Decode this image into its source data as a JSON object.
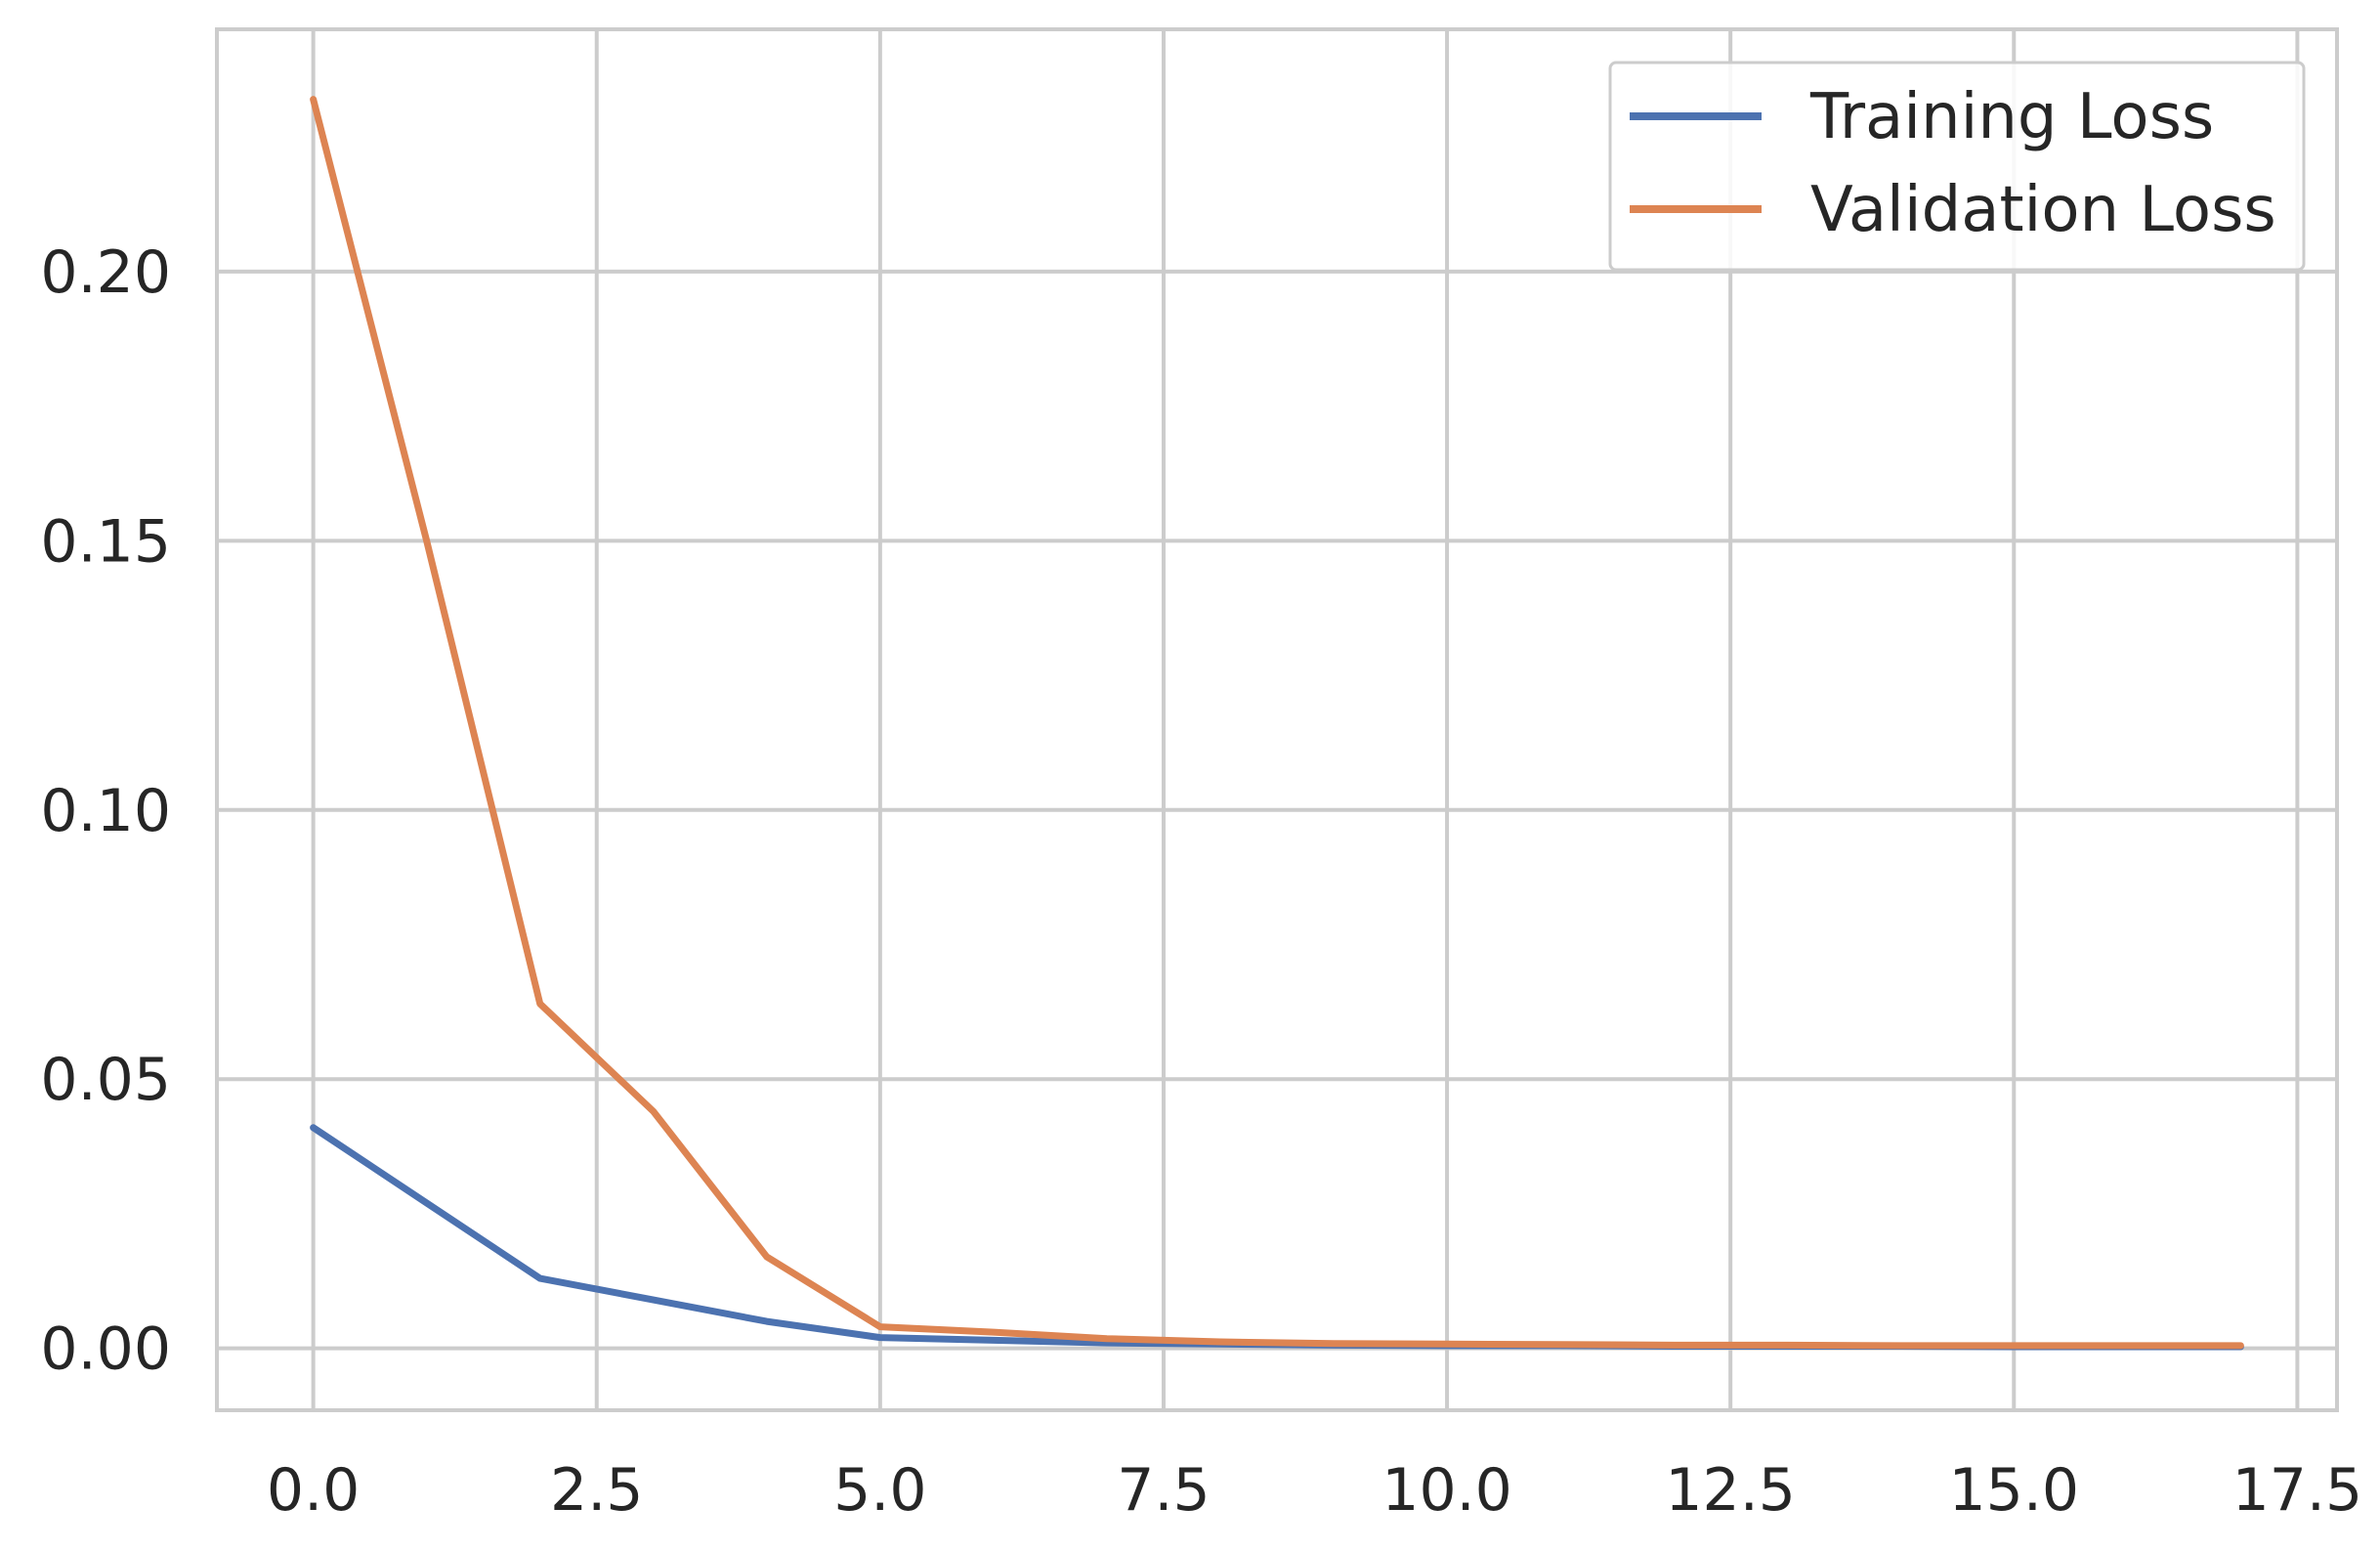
{
  "chart_data": {
    "type": "line",
    "title": "",
    "xlabel": "",
    "ylabel": "",
    "xlim": [
      -0.85,
      17.85
    ],
    "ylim": [
      -0.0115,
      0.245
    ],
    "xticks": [
      0.0,
      2.5,
      5.0,
      7.5,
      10.0,
      12.5,
      15.0,
      17.5
    ],
    "xtick_labels": [
      "0.0",
      "2.5",
      "5.0",
      "7.5",
      "10.0",
      "12.5",
      "15.0",
      "17.5"
    ],
    "yticks": [
      0.0,
      0.05,
      0.1,
      0.15,
      0.2
    ],
    "ytick_labels": [
      "0.00",
      "0.05",
      "0.10",
      "0.15",
      "0.20"
    ],
    "grid": true,
    "legend_position": "top-right",
    "x": [
      0,
      1,
      2,
      3,
      4,
      5,
      6,
      7,
      8,
      9,
      10,
      11,
      12,
      13,
      14,
      15,
      16,
      17
    ],
    "series": [
      {
        "name": "Training Loss",
        "color": "#4c72b0",
        "values": [
          0.041,
          0.027,
          0.013,
          0.009,
          0.005,
          0.002,
          0.0015,
          0.001,
          0.0008,
          0.0006,
          0.0005,
          0.0005,
          0.0004,
          0.0004,
          0.0004,
          0.0003,
          0.0003,
          0.0003
        ]
      },
      {
        "name": "Validation Loss",
        "color": "#dd8452",
        "values": [
          0.232,
          0.15,
          0.064,
          0.044,
          0.017,
          0.004,
          0.003,
          0.0018,
          0.0012,
          0.0009,
          0.0008,
          0.0007,
          0.0006,
          0.0006,
          0.0005,
          0.0005,
          0.0005,
          0.0005
        ]
      }
    ]
  }
}
